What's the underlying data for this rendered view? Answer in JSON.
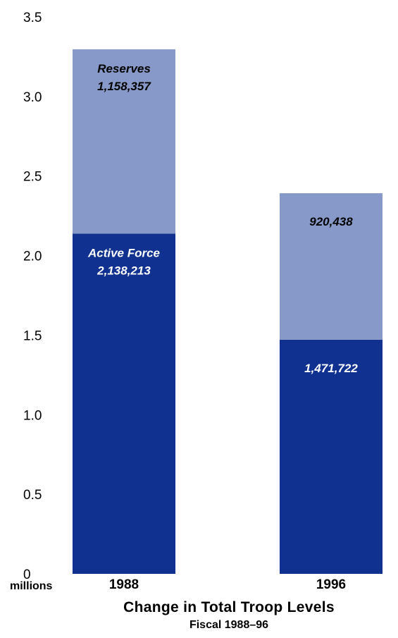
{
  "chart_data": {
    "type": "bar",
    "stacked": true,
    "title": "Change in Total Troop Levels",
    "subtitle": "Fiscal 1988–96",
    "categories": [
      "1988",
      "1996"
    ],
    "ylim": [
      0,
      3.5
    ],
    "yticks": [
      "0",
      "0.5",
      "1.0",
      "1.5",
      "2.0",
      "2.5",
      "3.0",
      "3.5"
    ],
    "ytick_values": [
      0,
      0.5,
      1.0,
      1.5,
      2.0,
      2.5,
      3.0,
      3.5
    ],
    "yunit": "millions",
    "grid": false,
    "series": [
      {
        "name": "Active Force",
        "color": "#10318f",
        "label_color": "#ffffff",
        "values": [
          2.138213,
          1.471722
        ],
        "labels": [
          "2,138,213",
          "1,471,722"
        ]
      },
      {
        "name": "Reserves",
        "color": "#8799c8",
        "label_color": "#000000",
        "values": [
          1.158357,
          0.920438
        ],
        "labels": [
          "1,158,357",
          "920,438"
        ]
      }
    ]
  }
}
